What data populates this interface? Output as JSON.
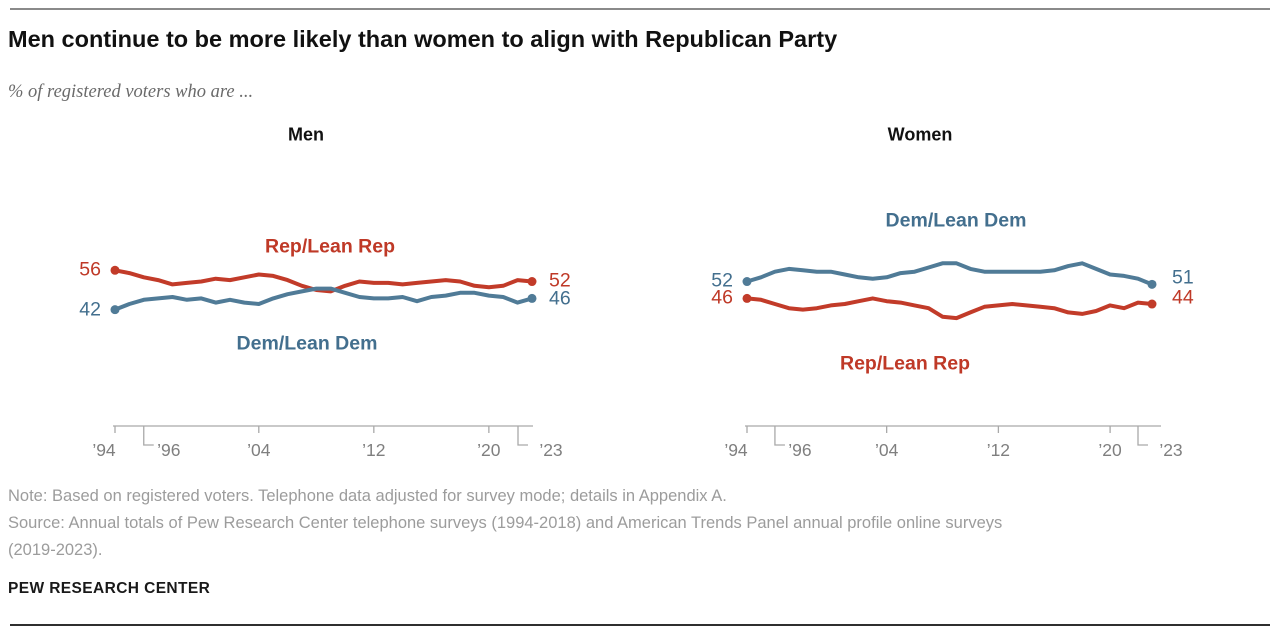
{
  "header": {
    "title": "Men continue to be more likely than women to align with Republican Party",
    "subtitle": "% of registered voters who are ..."
  },
  "colors": {
    "rep": "#bf3927",
    "dem": "#436f8e",
    "rep_line": "#c23b29",
    "dem_line": "#507b97",
    "axis": "#a9a9a9",
    "tick_label": "#7f7f7f"
  },
  "chart_data": [
    {
      "type": "line",
      "title": "Men",
      "years": [
        1994,
        1995,
        1996,
        1997,
        1998,
        1999,
        2000,
        2001,
        2002,
        2003,
        2004,
        2005,
        2006,
        2007,
        2008,
        2009,
        2010,
        2011,
        2012,
        2013,
        2014,
        2015,
        2016,
        2017,
        2018,
        2019,
        2020,
        2021,
        2022,
        2023
      ],
      "xtick_labels": [
        "’94",
        "’96",
        "’04",
        "’12",
        "’20",
        "’23"
      ],
      "ylim": [
        38,
        62
      ],
      "grid": false,
      "legend_position": "inline-labels",
      "series": [
        {
          "name": "Rep/Lean Rep",
          "color_key": "rep",
          "start_label": "56",
          "end_label": "52",
          "values": [
            56,
            55,
            53.5,
            52.5,
            51,
            51.5,
            52,
            53,
            52.5,
            53.5,
            54.5,
            54,
            52.5,
            50.5,
            49,
            48.5,
            50.5,
            52,
            51.5,
            51.5,
            51,
            51.5,
            52,
            52.5,
            52,
            50.5,
            50,
            50.5,
            52.5,
            52
          ]
        },
        {
          "name": "Dem/Lean Dem",
          "color_key": "dem",
          "start_label": "42",
          "end_label": "46",
          "values": [
            42,
            44,
            45.5,
            46,
            46.5,
            45.5,
            46,
            44.5,
            45.5,
            44.5,
            44,
            46,
            47.5,
            48.5,
            49.5,
            49.5,
            48,
            46.5,
            46,
            46,
            46.5,
            45,
            46.5,
            47,
            48,
            48,
            47,
            46.5,
            44.5,
            46
          ]
        }
      ]
    },
    {
      "type": "line",
      "title": "Women",
      "years": [
        1994,
        1995,
        1996,
        1997,
        1998,
        1999,
        2000,
        2001,
        2002,
        2003,
        2004,
        2005,
        2006,
        2007,
        2008,
        2009,
        2010,
        2011,
        2012,
        2013,
        2014,
        2015,
        2016,
        2017,
        2018,
        2019,
        2020,
        2021,
        2022,
        2023
      ],
      "xtick_labels": [
        "’94",
        "’96",
        "’04",
        "’12",
        "’20",
        "’23"
      ],
      "ylim": [
        38,
        62
      ],
      "grid": false,
      "legend_position": "inline-labels",
      "series": [
        {
          "name": "Dem/Lean Dem",
          "color_key": "dem",
          "start_label": "52",
          "end_label": "51",
          "values": [
            52,
            53.5,
            55.5,
            56.5,
            56,
            55.5,
            55.5,
            54.5,
            53.5,
            53,
            53.5,
            55,
            55.5,
            57,
            58.5,
            58.5,
            56.5,
            55.5,
            55.5,
            55.5,
            55.5,
            55.5,
            56,
            57.5,
            58.5,
            56.5,
            54.5,
            54,
            53,
            51
          ]
        },
        {
          "name": "Rep/Lean Rep",
          "color_key": "rep",
          "start_label": "46",
          "end_label": "44",
          "values": [
            46,
            45.5,
            44,
            42.5,
            42,
            42.5,
            43.5,
            44,
            45,
            46,
            45,
            44.5,
            43.5,
            42.5,
            39.5,
            39,
            41,
            43,
            43.5,
            44,
            43.5,
            43,
            42.5,
            41,
            40.5,
            41.5,
            43.5,
            42.5,
            44.5,
            44
          ]
        }
      ]
    }
  ],
  "footer": {
    "note_lines": [
      "Note: Based on registered voters. Telephone data adjusted for survey mode; details in Appendix A.",
      "Source: Annual totals of Pew Research Center telephone surveys (1994-2018) and American Trends Panel annual profile online surveys",
      "(2019-2023)."
    ],
    "brand": "PEW RESEARCH CENTER"
  }
}
